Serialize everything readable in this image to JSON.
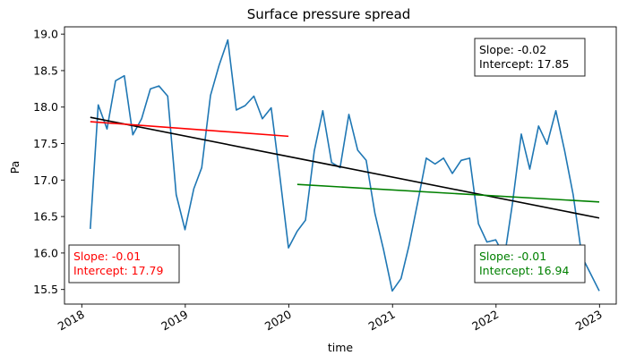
{
  "chart_data": {
    "type": "line",
    "title": "Surface pressure spread",
    "xlabel": "time",
    "ylabel": "Pa",
    "xlim": [
      "2017-11-01",
      "2023-03-01"
    ],
    "ylim": [
      15.3,
      19.1
    ],
    "x_ticks": [
      {
        "date": "2018-01-01",
        "label": "2018"
      },
      {
        "date": "2019-01-01",
        "label": "2019"
      },
      {
        "date": "2020-01-01",
        "label": "2020"
      },
      {
        "date": "2021-01-01",
        "label": "2021"
      },
      {
        "date": "2022-01-01",
        "label": "2022"
      },
      {
        "date": "2023-01-01",
        "label": "2023"
      }
    ],
    "y_ticks": [
      {
        "value": 15.5,
        "label": "15.5"
      },
      {
        "value": 16.0,
        "label": "16.0"
      },
      {
        "value": 16.5,
        "label": "16.5"
      },
      {
        "value": 17.0,
        "label": "17.0"
      },
      {
        "value": 17.5,
        "label": "17.5"
      },
      {
        "value": 18.0,
        "label": "18.0"
      },
      {
        "value": 18.5,
        "label": "18.5"
      },
      {
        "value": 19.0,
        "label": "19.0"
      }
    ],
    "grid": false,
    "series": [
      {
        "color": "#1f77b4",
        "x": [
          "2018-01-31",
          "2018-02-28",
          "2018-03-31",
          "2018-04-30",
          "2018-05-31",
          "2018-06-30",
          "2018-07-31",
          "2018-08-31",
          "2018-09-30",
          "2018-10-31",
          "2018-11-30",
          "2018-12-31",
          "2019-01-31",
          "2019-02-28",
          "2019-03-31",
          "2019-04-30",
          "2019-05-31",
          "2019-06-30",
          "2019-07-31",
          "2019-08-31",
          "2019-09-30",
          "2019-10-31",
          "2019-11-30",
          "2019-12-31",
          "2020-01-31",
          "2020-02-29",
          "2020-03-31",
          "2020-04-30",
          "2020-05-31",
          "2020-06-30",
          "2020-07-31",
          "2020-08-31",
          "2020-09-30",
          "2020-10-31",
          "2020-11-30",
          "2020-12-31",
          "2021-01-31",
          "2021-02-28",
          "2021-03-31",
          "2021-04-30",
          "2021-05-31",
          "2021-06-30",
          "2021-07-31",
          "2021-08-31",
          "2021-09-30",
          "2021-10-31",
          "2021-11-30",
          "2021-12-31",
          "2022-01-31",
          "2022-02-28",
          "2022-03-31",
          "2022-04-30",
          "2022-05-31",
          "2022-06-30",
          "2022-07-31",
          "2022-08-31",
          "2022-09-30",
          "2022-10-31",
          "2022-11-30",
          "2022-12-31"
        ],
        "values": [
          16.33,
          18.03,
          17.7,
          18.36,
          18.43,
          17.62,
          17.84,
          18.25,
          18.29,
          18.15,
          16.8,
          16.32,
          16.88,
          17.17,
          18.16,
          18.57,
          18.92,
          17.96,
          18.02,
          18.15,
          17.84,
          17.99,
          17.07,
          16.07,
          16.3,
          16.45,
          17.4,
          17.95,
          17.24,
          17.17,
          17.9,
          17.41,
          17.27,
          16.54,
          16.05,
          15.48,
          15.65,
          16.1,
          16.7,
          17.3,
          17.22,
          17.3,
          17.09,
          17.27,
          17.3,
          16.4,
          16.15,
          16.18,
          15.95,
          16.68,
          17.63,
          17.15,
          17.74,
          17.49,
          17.95,
          17.4,
          16.8,
          15.95,
          15.72,
          15.48
        ]
      },
      {
        "color": "#000000",
        "x": [
          "2018-01-31",
          "2022-12-31"
        ],
        "values": [
          17.86,
          16.48
        ]
      },
      {
        "color": "#ff0000",
        "x": [
          "2018-01-31",
          "2019-12-31"
        ],
        "values": [
          17.8,
          17.6
        ]
      },
      {
        "color": "#008000",
        "x": [
          "2020-01-31",
          "2022-12-31"
        ],
        "values": [
          16.94,
          16.7
        ]
      }
    ],
    "annotations": [
      {
        "lines": [
          "Slope: -0.02",
          "Intercept: 17.85"
        ],
        "color": "#000000",
        "placement": "top-right"
      },
      {
        "lines": [
          "Slope: -0.01",
          "Intercept: 17.79"
        ],
        "color": "#ff0000",
        "placement": "bottom-left"
      },
      {
        "lines": [
          "Slope: -0.01",
          "Intercept: 16.94"
        ],
        "color": "#008000",
        "placement": "bottom-right"
      }
    ]
  }
}
